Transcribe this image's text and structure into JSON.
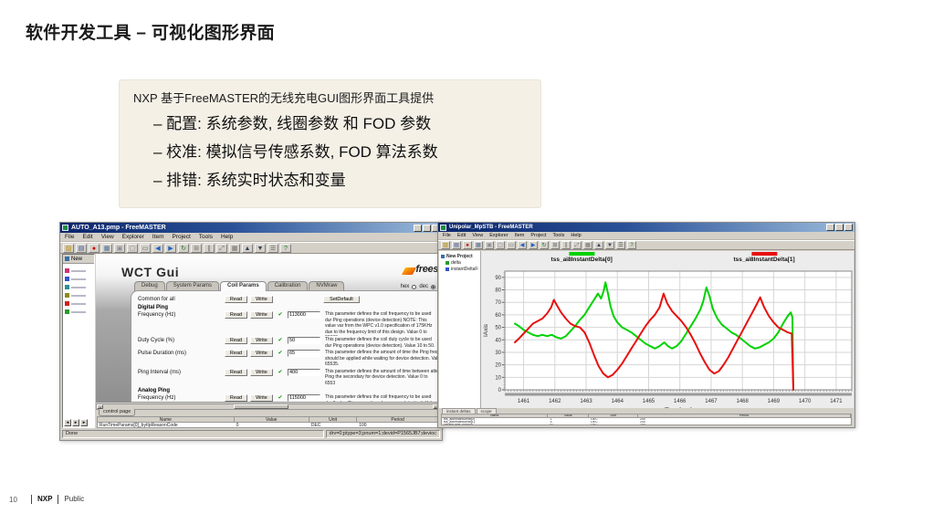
{
  "slide": {
    "title": "软件开发工具 – 可视化图形界面",
    "footer": {
      "page": "10",
      "brand": "NXP",
      "label": "Public"
    }
  },
  "callout": {
    "intro": "NXP 基于FreeMASTER的无线充电GUI图形界面工具提供",
    "bullets": [
      "– 配置: 系统参数, 线圈参数 和 FOD 参数",
      "– 校准: 模拟信号传感系数, FOD 算法系数",
      "– 排错: 系统实时状态和变量"
    ]
  },
  "toolbar_icons": [
    {
      "name": "open-project-icon",
      "glyph": "▨",
      "color": "#b88a00"
    },
    {
      "name": "save-icon",
      "glyph": "▤",
      "color": "#33509a"
    },
    {
      "name": "stop-communication-icon",
      "glyph": "●",
      "color": "#cc0000"
    },
    {
      "name": "project-window-icon",
      "glyph": "▦",
      "color": "#4a6d94"
    },
    {
      "name": "copy-icon",
      "glyph": "▣",
      "color": "#8a8a96"
    },
    {
      "name": "paste-icon",
      "glyph": "▢",
      "color": "#8a8a96"
    },
    {
      "name": "print-icon",
      "glyph": "▭",
      "color": "#5d6470"
    },
    {
      "name": "back-icon",
      "glyph": "◀",
      "color": "#1f62c2"
    },
    {
      "name": "forward-icon",
      "glyph": "▶",
      "color": "#1f62c2"
    },
    {
      "name": "reload-icon",
      "glyph": "↻",
      "color": "#1f7a2f"
    },
    {
      "name": "new-item-icon",
      "glyph": "⊞",
      "color": "#707070"
    },
    {
      "name": "pause-icon",
      "glyph": "∥",
      "color": "#707070"
    },
    {
      "name": "zoom-fit-icon",
      "glyph": "⤢",
      "color": "#707070"
    },
    {
      "name": "grid-icon",
      "glyph": "▦",
      "color": "#707070"
    },
    {
      "name": "move-up-icon",
      "glyph": "▲",
      "color": "#30405a"
    },
    {
      "name": "move-down-icon",
      "glyph": "▼",
      "color": "#30405a"
    },
    {
      "name": "options-icon",
      "glyph": "☰",
      "color": "#555"
    },
    {
      "name": "help-icon",
      "glyph": "?",
      "color": "#1f7a2f"
    }
  ],
  "left_window": {
    "title": "AUTO_A13.pmp - FreeMASTER",
    "menu": [
      "File",
      "Edit",
      "View",
      "Explorer",
      "Item",
      "Project",
      "Tools",
      "Help"
    ],
    "tree_root": "New",
    "tree_items": [
      {
        "name": "tree-item-scope-pink",
        "color": "#cc3377"
      },
      {
        "name": "tree-item-scope-blue",
        "color": "#3355cc"
      },
      {
        "name": "tree-item-scope-teal",
        "color": "#2a9090"
      },
      {
        "name": "tree-item-scope-olive",
        "color": "#8a8a20"
      },
      {
        "name": "tree-item-scope-red",
        "color": "#cc2222"
      },
      {
        "name": "tree-item-scope-green",
        "color": "#2a9a2a"
      }
    ],
    "gui": {
      "heading": "WCT Gui",
      "brand": "freesc",
      "tabs": [
        "Debug",
        "System Params",
        "Coil Params",
        "Calibration",
        "NVMraw"
      ],
      "active_tab": "Coil Params",
      "radio_hex": "hex",
      "radio_dec": "dec",
      "common_label": "Common for all",
      "read": "Read",
      "write": "Write",
      "set_default": "SetDefault",
      "rows": [
        {
          "type": "section",
          "label": "Digital Ping"
        },
        {
          "type": "param",
          "label": "Frequency (Hz)",
          "value": "113000",
          "desc": "This parameter defines the coil frequency to be used dur Ping operations (device detection) NOTE: This value var from the WPC v1.0 specification of 175KHz due to the frequency limit of this design. Value 0 to 20000."
        },
        {
          "type": "param",
          "label": "Duty Cycle (%)",
          "value": "50",
          "desc": "This parameter defines the coil duty cycle to be used dur Ping operations (device detection). Value 10 to 50."
        },
        {
          "type": "param",
          "label": "Pulse Duration (ms)",
          "value": "65",
          "desc": "This parameter defines the amount of time the Ping freq should be applied while waiting for device detection. Val 65535."
        },
        {
          "type": "param",
          "label": "Ping Interval (ms)",
          "value": "400",
          "desc": "This parameter defines the amount of time between atte Ping the secondary for device detection. Value 0 to 6553"
        },
        {
          "type": "section",
          "label": "Analog Ping"
        },
        {
          "type": "param",
          "label": "Frequency (Hz)",
          "value": "115000",
          "desc": "This parameter defines the coil frequency to be used dur Analog Ping operations (presence detection). Value 0 to"
        }
      ]
    },
    "control_tab": "control page",
    "watch": {
      "headers": [
        "Name",
        "Value",
        "Unit",
        "Period"
      ],
      "rows": [
        [
          "RunTimeParams[0]_bytIpReasonCode",
          "0",
          "DEC",
          "100"
        ]
      ]
    },
    "status_left": "Done",
    "status_right": "drv=0;ptype=3;pnum=1;devid=P1565JB7;devioc"
  },
  "right_window": {
    "title": "Unipolar_MpSTB - FreeMASTER",
    "menu": [
      "File",
      "Edit",
      "View",
      "Explorer",
      "Item",
      "Project",
      "Tools",
      "Help"
    ],
    "tree_root": "New Project",
    "tree_items": [
      {
        "label": "delta",
        "color": "#2a9a2a"
      },
      {
        "label": "instantDeltaFunction",
        "color": "#3355cc"
      }
    ],
    "bottom_tabs": [
      "instant deltas",
      "scope"
    ],
    "watch": {
      "headers": [
        "Name",
        "Value",
        "Unit",
        "Period"
      ],
      "rows": [
        [
          "tss_ai8InstantDelta[0]",
          "1",
          "DEC",
          "200"
        ],
        [
          "tss_ai8InstantDelta[1]",
          "3",
          "DEC",
          "200"
        ],
        [
          "instantDelta_fraction",
          "87",
          "DEC",
          "200"
        ]
      ]
    }
  },
  "chart_data": {
    "type": "line",
    "title": "",
    "xlabel": "Time [sec]",
    "ylabel": "IAxis",
    "xlim": [
      1460.4,
      1471.5
    ],
    "ylim": [
      0,
      95
    ],
    "xticks": [
      1461,
      1462,
      1463,
      1464,
      1465,
      1466,
      1467,
      1468,
      1469,
      1470,
      1471
    ],
    "yticks": [
      0,
      10,
      20,
      30,
      40,
      50,
      60,
      70,
      80,
      90
    ],
    "grid": true,
    "legend_position": "top",
    "series": [
      {
        "name": "tss_ai8InstantDelta[0]",
        "color": "#00d200",
        "points": [
          [
            1460.72,
            53
          ],
          [
            1460.85,
            51
          ],
          [
            1461.0,
            48
          ],
          [
            1461.15,
            46
          ],
          [
            1461.3,
            44
          ],
          [
            1461.45,
            43
          ],
          [
            1461.6,
            44
          ],
          [
            1461.75,
            43
          ],
          [
            1461.9,
            44
          ],
          [
            1462.05,
            42
          ],
          [
            1462.2,
            41
          ],
          [
            1462.35,
            43
          ],
          [
            1462.5,
            47
          ],
          [
            1462.65,
            51
          ],
          [
            1462.8,
            56
          ],
          [
            1462.95,
            60
          ],
          [
            1463.1,
            66
          ],
          [
            1463.25,
            72
          ],
          [
            1463.38,
            77
          ],
          [
            1463.48,
            73
          ],
          [
            1463.56,
            79
          ],
          [
            1463.62,
            86
          ],
          [
            1463.7,
            77
          ],
          [
            1463.78,
            67
          ],
          [
            1463.88,
            59
          ],
          [
            1464.0,
            54
          ],
          [
            1464.15,
            50
          ],
          [
            1464.3,
            48
          ],
          [
            1464.45,
            46
          ],
          [
            1464.6,
            43
          ],
          [
            1464.75,
            40
          ],
          [
            1464.9,
            37
          ],
          [
            1465.05,
            35
          ],
          [
            1465.2,
            33
          ],
          [
            1465.35,
            35
          ],
          [
            1465.5,
            38
          ],
          [
            1465.62,
            35
          ],
          [
            1465.75,
            33
          ],
          [
            1465.9,
            35
          ],
          [
            1466.05,
            39
          ],
          [
            1466.2,
            45
          ],
          [
            1466.35,
            51
          ],
          [
            1466.5,
            57
          ],
          [
            1466.65,
            64
          ],
          [
            1466.75,
            71
          ],
          [
            1466.85,
            82
          ],
          [
            1466.95,
            75
          ],
          [
            1467.05,
            65
          ],
          [
            1467.2,
            57
          ],
          [
            1467.35,
            52
          ],
          [
            1467.5,
            49
          ],
          [
            1467.65,
            46
          ],
          [
            1467.8,
            44
          ],
          [
            1467.95,
            41
          ],
          [
            1468.1,
            38
          ],
          [
            1468.25,
            35
          ],
          [
            1468.4,
            33
          ],
          [
            1468.55,
            34
          ],
          [
            1468.7,
            36
          ],
          [
            1468.85,
            38
          ],
          [
            1469.0,
            41
          ],
          [
            1469.15,
            46
          ],
          [
            1469.3,
            53
          ],
          [
            1469.45,
            59
          ],
          [
            1469.55,
            62
          ],
          [
            1469.6,
            58
          ],
          [
            1469.63,
            0
          ]
        ]
      },
      {
        "name": "tss_ai8InstantDelta[1]",
        "color": "#e81010",
        "points": [
          [
            1460.72,
            38
          ],
          [
            1460.85,
            41
          ],
          [
            1461.0,
            45
          ],
          [
            1461.15,
            49
          ],
          [
            1461.3,
            53
          ],
          [
            1461.45,
            55
          ],
          [
            1461.6,
            57
          ],
          [
            1461.75,
            61
          ],
          [
            1461.88,
            66
          ],
          [
            1461.97,
            72
          ],
          [
            1462.08,
            67
          ],
          [
            1462.2,
            62
          ],
          [
            1462.35,
            57
          ],
          [
            1462.5,
            53
          ],
          [
            1462.65,
            51
          ],
          [
            1462.8,
            50
          ],
          [
            1462.95,
            46
          ],
          [
            1463.1,
            38
          ],
          [
            1463.25,
            28
          ],
          [
            1463.4,
            19
          ],
          [
            1463.55,
            13
          ],
          [
            1463.7,
            10
          ],
          [
            1463.85,
            12
          ],
          [
            1464.0,
            16
          ],
          [
            1464.15,
            21
          ],
          [
            1464.3,
            27
          ],
          [
            1464.45,
            33
          ],
          [
            1464.6,
            39
          ],
          [
            1464.75,
            45
          ],
          [
            1464.9,
            51
          ],
          [
            1465.05,
            56
          ],
          [
            1465.2,
            60
          ],
          [
            1465.35,
            66
          ],
          [
            1465.48,
            77
          ],
          [
            1465.6,
            69
          ],
          [
            1465.75,
            63
          ],
          [
            1465.9,
            59
          ],
          [
            1466.05,
            55
          ],
          [
            1466.2,
            50
          ],
          [
            1466.35,
            44
          ],
          [
            1466.5,
            37
          ],
          [
            1466.65,
            29
          ],
          [
            1466.8,
            22
          ],
          [
            1466.95,
            16
          ],
          [
            1467.1,
            13
          ],
          [
            1467.25,
            15
          ],
          [
            1467.4,
            20
          ],
          [
            1467.55,
            26
          ],
          [
            1467.7,
            33
          ],
          [
            1467.85,
            40
          ],
          [
            1468.0,
            47
          ],
          [
            1468.15,
            54
          ],
          [
            1468.3,
            61
          ],
          [
            1468.45,
            68
          ],
          [
            1468.57,
            74
          ],
          [
            1468.7,
            66
          ],
          [
            1468.85,
            59
          ],
          [
            1469.0,
            54
          ],
          [
            1469.15,
            50
          ],
          [
            1469.3,
            48
          ],
          [
            1469.45,
            46
          ],
          [
            1469.58,
            45
          ],
          [
            1469.63,
            0
          ]
        ]
      }
    ]
  }
}
